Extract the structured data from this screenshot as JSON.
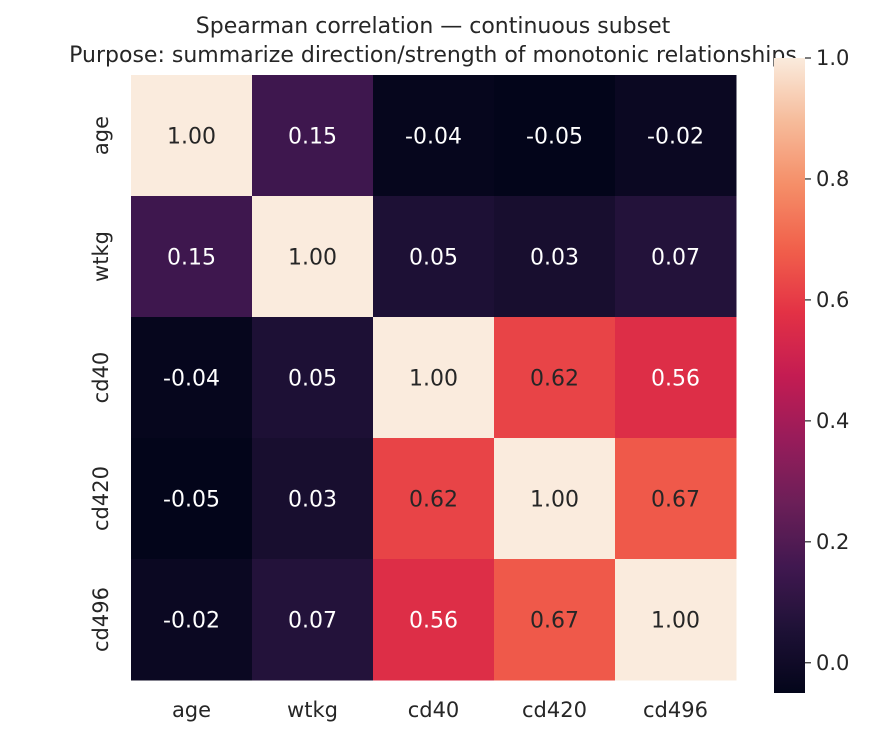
{
  "chart_data": {
    "type": "heatmap",
    "title": "Spearman correlation — continuous subset",
    "subtitle": "Purpose: summarize direction/strength of monotonic relationships",
    "x_categories": [
      "age",
      "wtkg",
      "cd40",
      "cd420",
      "cd496"
    ],
    "y_categories": [
      "age",
      "wtkg",
      "cd40",
      "cd420",
      "cd496"
    ],
    "values": [
      [
        1.0,
        0.15,
        -0.04,
        -0.05,
        -0.02
      ],
      [
        0.15,
        1.0,
        0.05,
        0.03,
        0.07
      ],
      [
        -0.04,
        0.05,
        1.0,
        0.62,
        0.56
      ],
      [
        -0.05,
        0.03,
        0.62,
        1.0,
        0.67
      ],
      [
        -0.02,
        0.07,
        0.56,
        0.67,
        1.0
      ]
    ],
    "value_format": "0.00",
    "colorbar": {
      "range": [
        -0.05,
        1.0
      ],
      "ticks": [
        0.0,
        0.2,
        0.4,
        0.6,
        0.8,
        1.0
      ],
      "tick_labels": [
        "0.0",
        "0.2",
        "0.4",
        "0.6",
        "0.8",
        "1.0"
      ],
      "colormap": "rocket",
      "placement": "right"
    },
    "grid": false
  }
}
